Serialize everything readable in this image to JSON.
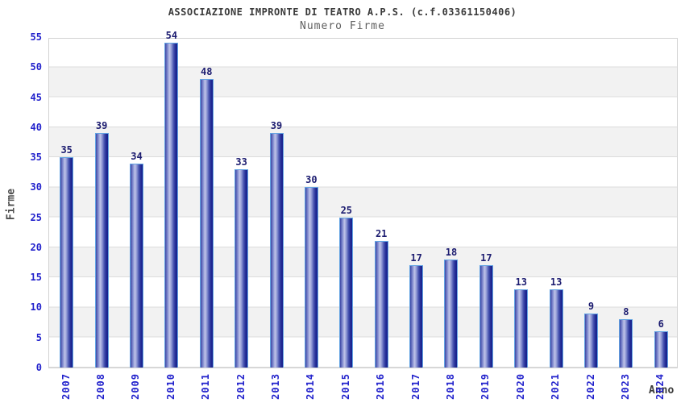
{
  "chart_data": {
    "type": "bar",
    "title": "ASSOCIAZIONE IMPRONTE DI TEATRO A.P.S. (c.f.03361150406)",
    "subtitle": "Numero Firme",
    "xlabel": "Anno",
    "ylabel": "Firme",
    "categories": [
      "2007",
      "2008",
      "2009",
      "2010",
      "2011",
      "2012",
      "2013",
      "2014",
      "2015",
      "2016",
      "2017",
      "2018",
      "2019",
      "2020",
      "2021",
      "2022",
      "2023",
      "2024"
    ],
    "values": [
      35,
      39,
      34,
      54,
      48,
      33,
      39,
      30,
      25,
      21,
      17,
      18,
      17,
      13,
      13,
      9,
      8,
      6
    ],
    "ylim": [
      0,
      55
    ],
    "ytick_step": 5,
    "yticks": [
      0,
      5,
      10,
      15,
      20,
      25,
      30,
      35,
      40,
      45,
      50,
      55
    ],
    "grid": true,
    "legend_position": "none",
    "colors": {
      "bar_edge": "#63a4e3",
      "bar_dark": "#161e8a",
      "bar_light": "#c0c4e8",
      "tick_label": "#2222cc",
      "value_label": "#1c1c70",
      "band": "#f2f2f2",
      "gridline": "#dcdcdc",
      "title_text": "#3a3a3a",
      "subtitle_text": "#5f5f5f"
    }
  }
}
